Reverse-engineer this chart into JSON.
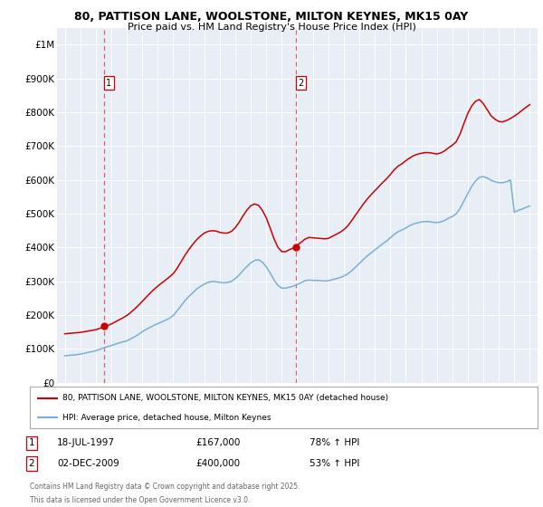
{
  "title_line1": "80, PATTISON LANE, WOOLSTONE, MILTON KEYNES, MK15 0AY",
  "title_line2": "Price paid vs. HM Land Registry's House Price Index (HPI)",
  "plot_bg_color": "#e8eef5",
  "ylim": [
    0,
    1050000
  ],
  "yticks": [
    0,
    100000,
    200000,
    300000,
    400000,
    500000,
    600000,
    700000,
    800000,
    900000,
    1000000
  ],
  "ytick_labels": [
    "£0",
    "£100K",
    "£200K",
    "£300K",
    "£400K",
    "£500K",
    "£600K",
    "£700K",
    "£800K",
    "£900K",
    "£1M"
  ],
  "xlim_start": 1994.5,
  "xlim_end": 2025.5,
  "xticks": [
    1995,
    1996,
    1997,
    1998,
    1999,
    2000,
    2001,
    2002,
    2003,
    2004,
    2005,
    2006,
    2007,
    2008,
    2009,
    2010,
    2011,
    2012,
    2013,
    2014,
    2015,
    2016,
    2017,
    2018,
    2019,
    2020,
    2021,
    2022,
    2023,
    2024,
    2025
  ],
  "red_line_color": "#cc0000",
  "blue_line_color": "#7ab0d4",
  "vline_color": "#e06060",
  "transaction1_x": 1997.55,
  "transaction1_y": 167000,
  "transaction2_x": 2009.92,
  "transaction2_y": 400000,
  "legend_label_red": "80, PATTISON LANE, WOOLSTONE, MILTON KEYNES, MK15 0AY (detached house)",
  "legend_label_blue": "HPI: Average price, detached house, Milton Keynes",
  "footer_line1": "Contains HM Land Registry data © Crown copyright and database right 2025.",
  "footer_line2": "This data is licensed under the Open Government Licence v3.0.",
  "note1_label": "1",
  "note1_date": "18-JUL-1997",
  "note1_price": "£167,000",
  "note1_hpi": "78% ↑ HPI",
  "note2_label": "2",
  "note2_date": "02-DEC-2009",
  "note2_price": "£400,000",
  "note2_hpi": "53% ↑ HPI",
  "hpi_data_x": [
    1995.0,
    1995.25,
    1995.5,
    1995.75,
    1996.0,
    1996.25,
    1996.5,
    1996.75,
    1997.0,
    1997.25,
    1997.5,
    1997.75,
    1998.0,
    1998.25,
    1998.5,
    1998.75,
    1999.0,
    1999.25,
    1999.5,
    1999.75,
    2000.0,
    2000.25,
    2000.5,
    2000.75,
    2001.0,
    2001.25,
    2001.5,
    2001.75,
    2002.0,
    2002.25,
    2002.5,
    2002.75,
    2003.0,
    2003.25,
    2003.5,
    2003.75,
    2004.0,
    2004.25,
    2004.5,
    2004.75,
    2005.0,
    2005.25,
    2005.5,
    2005.75,
    2006.0,
    2006.25,
    2006.5,
    2006.75,
    2007.0,
    2007.25,
    2007.5,
    2007.75,
    2008.0,
    2008.25,
    2008.5,
    2008.75,
    2009.0,
    2009.25,
    2009.5,
    2009.75,
    2010.0,
    2010.25,
    2010.5,
    2010.75,
    2011.0,
    2011.25,
    2011.5,
    2011.75,
    2012.0,
    2012.25,
    2012.5,
    2012.75,
    2013.0,
    2013.25,
    2013.5,
    2013.75,
    2014.0,
    2014.25,
    2014.5,
    2014.75,
    2015.0,
    2015.25,
    2015.5,
    2015.75,
    2016.0,
    2016.25,
    2016.5,
    2016.75,
    2017.0,
    2017.25,
    2017.5,
    2017.75,
    2018.0,
    2018.25,
    2018.5,
    2018.75,
    2019.0,
    2019.25,
    2019.5,
    2019.75,
    2020.0,
    2020.25,
    2020.5,
    2020.75,
    2021.0,
    2021.25,
    2021.5,
    2021.75,
    2022.0,
    2022.25,
    2022.5,
    2022.75,
    2023.0,
    2023.25,
    2023.5,
    2023.75,
    2024.0,
    2024.25,
    2024.5,
    2024.75,
    2025.0
  ],
  "hpi_data_y": [
    80000,
    81000,
    82000,
    83000,
    85000,
    87000,
    90000,
    92000,
    95000,
    99000,
    103000,
    107000,
    110000,
    114000,
    118000,
    121000,
    124000,
    130000,
    136000,
    143000,
    151000,
    158000,
    164000,
    170000,
    175000,
    180000,
    185000,
    191000,
    199000,
    213000,
    228000,
    243000,
    255000,
    266000,
    277000,
    285000,
    292000,
    297000,
    300000,
    299000,
    297000,
    296000,
    297000,
    300000,
    308000,
    319000,
    332000,
    344000,
    355000,
    362000,
    364000,
    357000,
    343000,
    325000,
    304000,
    288000,
    280000,
    280000,
    283000,
    286000,
    291000,
    296000,
    302000,
    304000,
    303000,
    303000,
    302000,
    301000,
    302000,
    305000,
    308000,
    311000,
    316000,
    322000,
    331000,
    342000,
    353000,
    364000,
    375000,
    384000,
    393000,
    402000,
    411000,
    419000,
    429000,
    439000,
    447000,
    452000,
    458000,
    465000,
    470000,
    473000,
    476000,
    477000,
    477000,
    475000,
    474000,
    476000,
    480000,
    487000,
    492000,
    500000,
    516000,
    538000,
    560000,
    581000,
    597000,
    608000,
    610000,
    606000,
    599000,
    595000,
    592000,
    592000,
    595000,
    600000,
    505000,
    510000,
    514000,
    519000,
    523000
  ],
  "red_line_x": [
    1995.0,
    1995.25,
    1995.5,
    1995.75,
    1996.0,
    1996.25,
    1996.5,
    1996.75,
    1997.0,
    1997.25,
    1997.5,
    1997.75,
    1998.0,
    1998.25,
    1998.5,
    1998.75,
    1999.0,
    1999.25,
    1999.5,
    1999.75,
    2000.0,
    2000.25,
    2000.5,
    2000.75,
    2001.0,
    2001.25,
    2001.5,
    2001.75,
    2002.0,
    2002.25,
    2002.5,
    2002.75,
    2003.0,
    2003.25,
    2003.5,
    2003.75,
    2004.0,
    2004.25,
    2004.5,
    2004.75,
    2005.0,
    2005.25,
    2005.5,
    2005.75,
    2006.0,
    2006.25,
    2006.5,
    2006.75,
    2007.0,
    2007.25,
    2007.5,
    2007.75,
    2008.0,
    2008.25,
    2008.5,
    2008.75,
    2009.0,
    2009.25,
    2009.5,
    2009.75,
    2010.0,
    2010.25,
    2010.5,
    2010.75,
    2011.0,
    2011.25,
    2011.5,
    2011.75,
    2012.0,
    2012.25,
    2012.5,
    2012.75,
    2013.0,
    2013.25,
    2013.5,
    2013.75,
    2014.0,
    2014.25,
    2014.5,
    2014.75,
    2015.0,
    2015.25,
    2015.5,
    2015.75,
    2016.0,
    2016.25,
    2016.5,
    2016.75,
    2017.0,
    2017.25,
    2017.5,
    2017.75,
    2018.0,
    2018.25,
    2018.5,
    2018.75,
    2019.0,
    2019.25,
    2019.5,
    2019.75,
    2020.0,
    2020.25,
    2020.5,
    2020.75,
    2021.0,
    2021.25,
    2021.5,
    2021.75,
    2022.0,
    2022.25,
    2022.5,
    2022.75,
    2023.0,
    2023.25,
    2023.5,
    2023.75,
    2024.0,
    2024.25,
    2024.5,
    2024.75,
    2025.0
  ],
  "red_line_y": [
    145000,
    146000,
    147000,
    148000,
    149000,
    151000,
    153000,
    155000,
    157000,
    161000,
    165000,
    169000,
    174000,
    180000,
    186000,
    192000,
    199000,
    208000,
    218000,
    229000,
    241000,
    253000,
    265000,
    276000,
    286000,
    295000,
    304000,
    313000,
    323000,
    339000,
    358000,
    377000,
    394000,
    409000,
    423000,
    434000,
    443000,
    448000,
    450000,
    449000,
    445000,
    443000,
    443000,
    448000,
    459000,
    475000,
    494000,
    511000,
    524000,
    529000,
    525000,
    510000,
    488000,
    458000,
    426000,
    401000,
    388000,
    388000,
    394000,
    399000,
    407000,
    416000,
    425000,
    430000,
    429000,
    428000,
    427000,
    426000,
    427000,
    433000,
    439000,
    445000,
    453000,
    464000,
    479000,
    496000,
    512000,
    528000,
    543000,
    556000,
    568000,
    580000,
    592000,
    603000,
    616000,
    630000,
    641000,
    648000,
    657000,
    665000,
    672000,
    676000,
    679000,
    681000,
    681000,
    679000,
    677000,
    680000,
    686000,
    695000,
    703000,
    713000,
    736000,
    767000,
    797000,
    819000,
    833000,
    838000,
    826000,
    808000,
    790000,
    780000,
    773000,
    772000,
    776000,
    782000,
    789000,
    797000,
    806000,
    815000,
    823000
  ]
}
